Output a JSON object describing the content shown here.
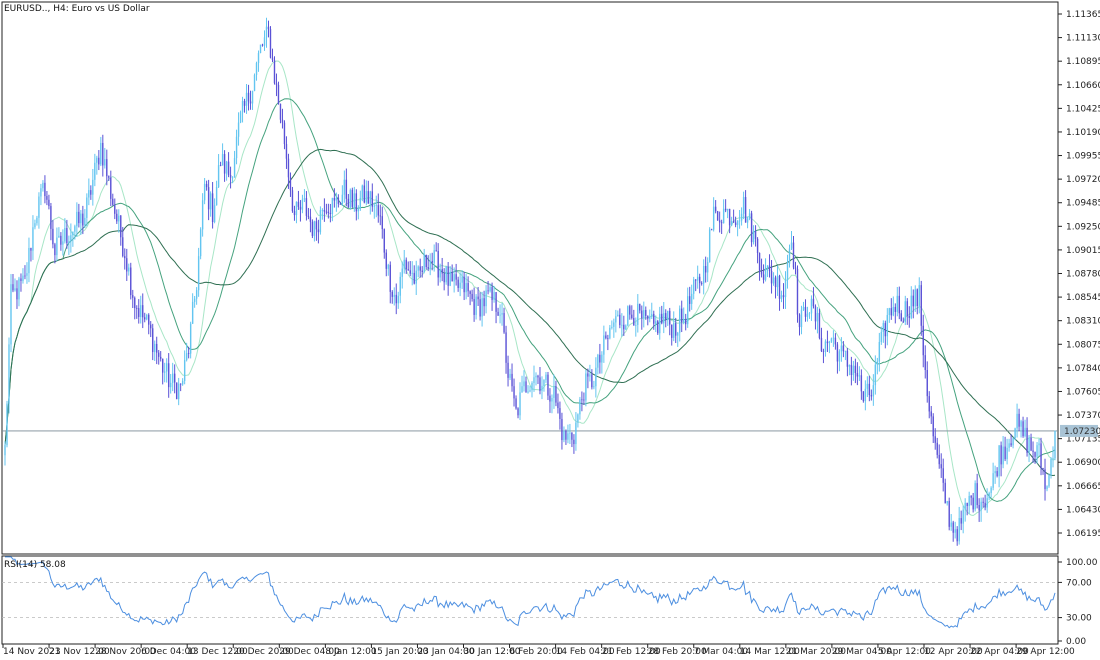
{
  "window": {
    "title": "EURUSD.., H4:  Euro vs US Dollar",
    "current_price_label": "1.07230"
  },
  "indicator": {
    "title": "RSI(14) 58.08"
  },
  "colors": {
    "bull": "#63c5f0",
    "bear": "#5a52d6",
    "ma_fast": "#a8e6c7",
    "ma_slow": "#45a27e",
    "ma_long": "#2f6f52",
    "rsi": "#4d8fe0",
    "price_line": "#7a8a94",
    "level_line": "#b8b8b8",
    "frame": "#222222",
    "price_bg": "#a9c4d6"
  },
  "chart_data": [
    {
      "type": "candlestick",
      "title": "EURUSD.., H4:  Euro vs US Dollar",
      "ylim": [
        1.06015,
        1.11465
      ],
      "y_ticks": [
        "1.11365",
        "1.11130",
        "1.10895",
        "1.10660",
        "1.10425",
        "1.10190",
        "1.09955",
        "1.09720",
        "1.09485",
        "1.09250",
        "1.09015",
        "1.08780",
        "1.08545",
        "1.08310",
        "1.08075",
        "1.07840",
        "1.07605",
        "1.07370",
        "1.07135",
        "1.06900",
        "1.06665",
        "1.06430",
        "1.06195"
      ],
      "current_price": 1.0723,
      "x_ticks": [
        "14 Nov 2023",
        "21 Nov 12:00",
        "28 Nov 20:00",
        "6 Dec 04:00",
        "13 Dec 12:00",
        "20 Dec 20:00",
        "29 Dec 04:00",
        "8 Jan 12:00",
        "15 Jan 20:00",
        "23 Jan 04:00",
        "30 Jan 12:00",
        "6 Feb 20:00",
        "14 Feb 04:00",
        "21 Feb 12:00",
        "28 Feb 20:00",
        "7 Mar 04:00",
        "14 Mar 12:00",
        "21 Mar 20:00",
        "29 Mar 04:00",
        "5 Apr 12:00",
        "12 Apr 20:00",
        "22 Apr 04:00",
        "29 Apr 12:00"
      ],
      "close_anchors": [
        [
          0,
          1.0705
        ],
        [
          3,
          1.0855
        ],
        [
          10,
          1.087
        ],
        [
          15,
          1.0935
        ],
        [
          20,
          1.0965
        ],
        [
          25,
          1.09
        ],
        [
          30,
          1.0915
        ],
        [
          40,
          1.0935
        ],
        [
          48,
          1.1005
        ],
        [
          55,
          1.094
        ],
        [
          60,
          1.09
        ],
        [
          65,
          1.085
        ],
        [
          72,
          1.0825
        ],
        [
          78,
          1.079
        ],
        [
          83,
          1.077
        ],
        [
          88,
          1.0765
        ],
        [
          92,
          1.0805
        ],
        [
          96,
          1.087
        ],
        [
          100,
          1.0965
        ],
        [
          104,
          1.094
        ],
        [
          108,
          1.099
        ],
        [
          113,
          1.0975
        ],
        [
          118,
          1.103
        ],
        [
          124,
          1.1065
        ],
        [
          128,
          1.11
        ],
        [
          132,
          1.1115
        ],
        [
          136,
          1.106
        ],
        [
          140,
          1.101
        ],
        [
          145,
          1.0935
        ],
        [
          150,
          1.0945
        ],
        [
          155,
          1.092
        ],
        [
          160,
          1.095
        ],
        [
          165,
          1.0945
        ],
        [
          170,
          1.096
        ],
        [
          175,
          1.0945
        ],
        [
          180,
          1.0955
        ],
        [
          184,
          1.095
        ],
        [
          188,
          1.093
        ],
        [
          192,
          1.088
        ],
        [
          196,
          1.085
        ],
        [
          200,
          1.089
        ],
        [
          206,
          1.087
        ],
        [
          212,
          1.0895
        ],
        [
          218,
          1.0885
        ],
        [
          224,
          1.0865
        ],
        [
          230,
          1.0865
        ],
        [
          236,
          1.0845
        ],
        [
          242,
          1.0855
        ],
        [
          248,
          1.0845
        ],
        [
          252,
          1.078
        ],
        [
          256,
          1.074
        ],
        [
          260,
          1.0765
        ],
        [
          265,
          1.078
        ],
        [
          270,
          1.077
        ],
        [
          275,
          1.076
        ],
        [
          280,
          1.0715
        ],
        [
          285,
          1.072
        ],
        [
          290,
          1.0765
        ],
        [
          295,
          1.0775
        ],
        [
          300,
          1.0805
        ],
        [
          305,
          1.083
        ],
        [
          310,
          1.0835
        ],
        [
          315,
          1.084
        ],
        [
          320,
          1.083
        ],
        [
          325,
          1.0825
        ],
        [
          330,
          1.0835
        ],
        [
          335,
          1.0825
        ],
        [
          340,
          1.0835
        ],
        [
          345,
          1.086
        ],
        [
          350,
          1.088
        ],
        [
          355,
          1.0935
        ],
        [
          360,
          1.094
        ],
        [
          365,
          1.0935
        ],
        [
          370,
          1.0945
        ],
        [
          375,
          1.0915
        ],
        [
          380,
          1.088
        ],
        [
          385,
          1.0875
        ],
        [
          390,
          1.086
        ],
        [
          394,
          1.092
        ],
        [
          398,
          1.0825
        ],
        [
          402,
          1.085
        ],
        [
          406,
          1.0835
        ],
        [
          410,
          1.0805
        ],
        [
          414,
          1.0815
        ],
        [
          418,
          1.08
        ],
        [
          422,
          1.079
        ],
        [
          426,
          1.0785
        ],
        [
          430,
          1.0755
        ],
        [
          434,
          1.076
        ],
        [
          438,
          1.08
        ],
        [
          442,
          1.0835
        ],
        [
          446,
          1.085
        ],
        [
          450,
          1.084
        ],
        [
          454,
          1.085
        ],
        [
          458,
          1.0855
        ],
        [
          460,
          1.0805
        ],
        [
          463,
          1.0745
        ],
        [
          466,
          1.0705
        ],
        [
          470,
          1.0665
        ],
        [
          474,
          1.063
        ],
        [
          478,
          1.0625
        ],
        [
          482,
          1.065
        ],
        [
          486,
          1.066
        ],
        [
          490,
          1.0655
        ],
        [
          494,
          1.0665
        ],
        [
          498,
          1.07
        ],
        [
          502,
          1.071
        ],
        [
          506,
          1.073
        ],
        [
          510,
          1.072
        ],
        [
          514,
          1.0705
        ],
        [
          518,
          1.07
        ],
        [
          522,
          1.0665
        ],
        [
          526,
          1.0723
        ]
      ],
      "moving_averages": [
        "fast",
        "slow",
        "long"
      ]
    },
    {
      "type": "line",
      "title": "RSI(14) 58.08",
      "ylim": [
        0,
        100
      ],
      "y_ticks": [
        "100.00",
        "70.00",
        "30.00",
        "0.00"
      ],
      "levels": [
        70,
        30
      ],
      "last_value": 58.08
    }
  ]
}
